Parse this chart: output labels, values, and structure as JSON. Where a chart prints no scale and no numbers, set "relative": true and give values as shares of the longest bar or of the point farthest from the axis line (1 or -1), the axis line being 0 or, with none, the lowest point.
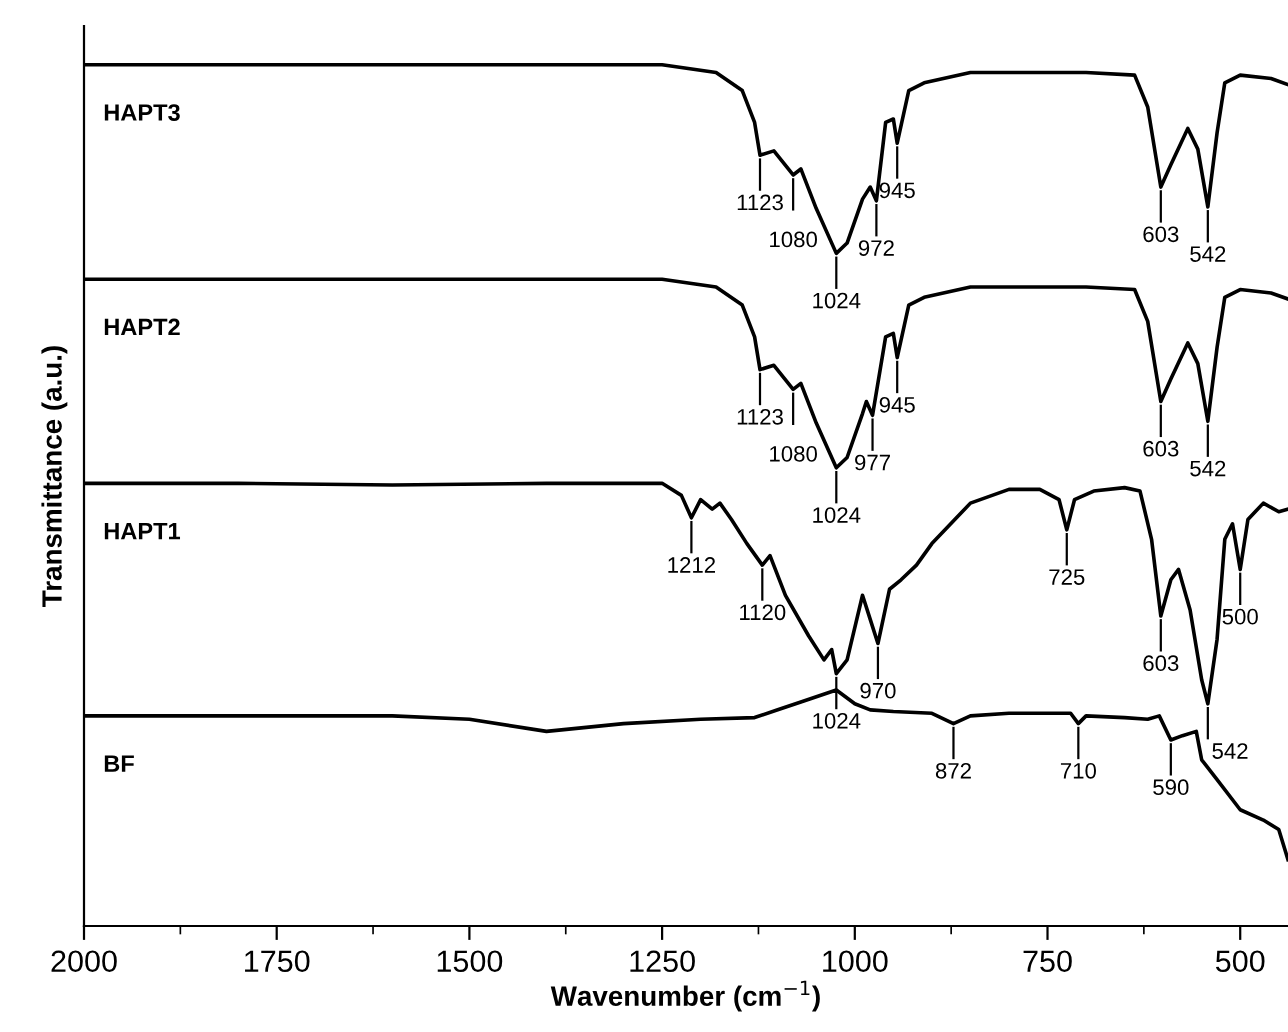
{
  "chart_data": {
    "type": "line",
    "relative": true,
    "xlabel": "Wavenumber (cm$^{−1}$)",
    "ylabel": "Transmittance (a.u.)",
    "xlim": [
      2000,
      438
    ],
    "xticks": [
      2000,
      {
        "value": 1875,
        "label": null
      },
      1750,
      {
        "value": 1625,
        "label": null
      },
      1500,
      {
        "value": 1375,
        "label": null
      },
      1250,
      {
        "value": 1125,
        "label": null
      },
      1000,
      {
        "value": 875,
        "label": null
      },
      750,
      {
        "value": 625,
        "label": null
      },
      500
    ],
    "grid": false,
    "legend": false,
    "marker": "none",
    "line_style": "solid",
    "series": [
      {
        "name": "HAPT3",
        "color": "#000000",
        "x": [
          2000,
          1800,
          1600,
          1400,
          1250,
          1180,
          1146,
          1130,
          1123,
          1105,
          1080,
          1070,
          1050,
          1024,
          1010,
          990,
          980,
          972,
          960,
          950,
          945,
          930,
          910,
          850,
          700,
          637,
          620,
          603,
          590,
          568,
          555,
          542,
          530,
          520,
          500,
          460,
          438
        ],
        "values": [
          1.0,
          1.0,
          1.0,
          1.0,
          1.0,
          0.991,
          0.97,
          0.933,
          0.895,
          0.9,
          0.872,
          0.879,
          0.833,
          0.781,
          0.793,
          0.844,
          0.858,
          0.842,
          0.933,
          0.937,
          0.909,
          0.97,
          0.979,
          0.991,
          0.991,
          0.988,
          0.951,
          0.858,
          0.884,
          0.926,
          0.902,
          0.835,
          0.921,
          0.979,
          0.988,
          0.984,
          0.977
        ]
      },
      {
        "name": "HAPT2",
        "color": "#000000",
        "x": [
          2000,
          1800,
          1600,
          1400,
          1250,
          1180,
          1146,
          1130,
          1123,
          1105,
          1080,
          1070,
          1050,
          1024,
          1010,
          990,
          985,
          977,
          960,
          950,
          945,
          930,
          910,
          850,
          700,
          637,
          620,
          603,
          590,
          568,
          555,
          542,
          530,
          520,
          500,
          460,
          438
        ],
        "values": [
          0.751,
          0.751,
          0.751,
          0.751,
          0.751,
          0.742,
          0.721,
          0.684,
          0.646,
          0.651,
          0.623,
          0.63,
          0.584,
          0.532,
          0.544,
          0.595,
          0.609,
          0.593,
          0.684,
          0.688,
          0.66,
          0.721,
          0.73,
          0.742,
          0.742,
          0.739,
          0.702,
          0.609,
          0.635,
          0.677,
          0.653,
          0.586,
          0.672,
          0.73,
          0.739,
          0.735,
          0.728
        ]
      },
      {
        "name": "HAPT1",
        "color": "#000000",
        "x": [
          2000,
          1800,
          1600,
          1400,
          1300,
          1250,
          1225,
          1212,
          1200,
          1185,
          1175,
          1160,
          1140,
          1120,
          1110,
          1090,
          1060,
          1040,
          1030,
          1024,
          1010,
          990,
          980,
          970,
          955,
          940,
          920,
          900,
          850,
          800,
          760,
          735,
          725,
          715,
          690,
          650,
          630,
          615,
          603,
          590,
          580,
          565,
          550,
          542,
          530,
          520,
          510,
          500,
          490,
          470,
          450,
          438
        ],
        "values": [
          0.514,
          0.514,
          0.512,
          0.514,
          0.514,
          0.514,
          0.5,
          0.474,
          0.495,
          0.484,
          0.491,
          0.472,
          0.444,
          0.419,
          0.43,
          0.384,
          0.337,
          0.309,
          0.321,
          0.293,
          0.309,
          0.384,
          0.356,
          0.328,
          0.391,
          0.402,
          0.419,
          0.444,
          0.491,
          0.507,
          0.507,
          0.495,
          0.46,
          0.495,
          0.505,
          0.509,
          0.505,
          0.449,
          0.36,
          0.402,
          0.414,
          0.367,
          0.286,
          0.258,
          0.333,
          0.449,
          0.467,
          0.414,
          0.472,
          0.491,
          0.481,
          0.484
        ]
      },
      {
        "name": "BF",
        "color": "#000000",
        "x": [
          2000,
          1800,
          1600,
          1500,
          1400,
          1300,
          1200,
          1130,
          1100,
          1070,
          1024,
          1000,
          980,
          950,
          900,
          872,
          850,
          800,
          720,
          710,
          700,
          650,
          620,
          605,
          590,
          575,
          557,
          550,
          530,
          500,
          470,
          450,
          438
        ],
        "values": [
          0.244,
          0.244,
          0.244,
          0.24,
          0.226,
          0.235,
          0.24,
          0.242,
          0.251,
          0.26,
          0.274,
          0.258,
          0.251,
          0.249,
          0.247,
          0.235,
          0.244,
          0.247,
          0.247,
          0.235,
          0.244,
          0.242,
          0.24,
          0.244,
          0.216,
          0.221,
          0.226,
          0.193,
          0.17,
          0.135,
          0.123,
          0.112,
          0.077
        ]
      }
    ],
    "annotations": [
      {
        "text": "1123",
        "x": 1123,
        "y": 0.895
      },
      {
        "text": "1080",
        "x": 1080,
        "y": 0.872
      },
      {
        "text": "1024",
        "x": 1024,
        "y": 0.781
      },
      {
        "text": "972",
        "x": 972,
        "y": 0.842
      },
      {
        "text": "945",
        "x": 945,
        "y": 0.909
      },
      {
        "text": "603",
        "x": 603,
        "y": 0.858
      },
      {
        "text": "542",
        "x": 542,
        "y": 0.835
      },
      {
        "text": "1123",
        "x": 1123,
        "y": 0.646
      },
      {
        "text": "1080",
        "x": 1080,
        "y": 0.623
      },
      {
        "text": "1024",
        "x": 1024,
        "y": 0.532
      },
      {
        "text": "977",
        "x": 977,
        "y": 0.593
      },
      {
        "text": "945",
        "x": 945,
        "y": 0.66
      },
      {
        "text": "603",
        "x": 603,
        "y": 0.609
      },
      {
        "text": "542",
        "x": 542,
        "y": 0.586
      },
      {
        "text": "1212",
        "x": 1212,
        "y": 0.474
      },
      {
        "text": "1120",
        "x": 1120,
        "y": 0.419
      },
      {
        "text": "1024",
        "x": 1024,
        "y": 0.293
      },
      {
        "text": "970",
        "x": 970,
        "y": 0.328
      },
      {
        "text": "725",
        "x": 725,
        "y": 0.46
      },
      {
        "text": "603",
        "x": 603,
        "y": 0.36
      },
      {
        "text": "542",
        "x": 542,
        "y": 0.258
      },
      {
        "text": "500",
        "x": 500,
        "y": 0.414
      },
      {
        "text": "872",
        "x": 872,
        "y": 0.235
      },
      {
        "text": "710",
        "x": 710,
        "y": 0.235
      },
      {
        "text": "590",
        "x": 590,
        "y": 0.216
      }
    ]
  }
}
